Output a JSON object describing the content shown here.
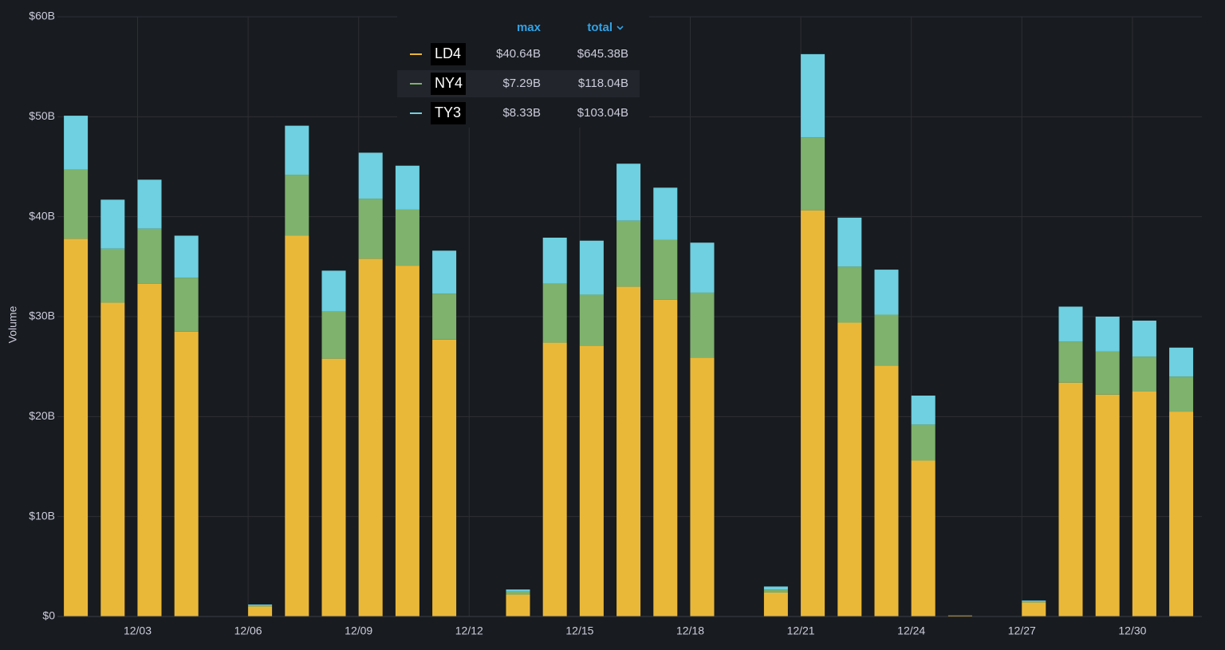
{
  "chart_data": {
    "type": "bar",
    "stacked": true,
    "y_label": "Volume",
    "categories": [
      null,
      null,
      "12/03",
      null,
      null,
      "12/06",
      null,
      null,
      "12/09",
      null,
      null,
      "12/12",
      null,
      null,
      "12/15",
      null,
      null,
      "12/18",
      null,
      null,
      "12/21",
      null,
      null,
      "12/24",
      null,
      null,
      "12/27",
      null,
      null,
      "12/30",
      null
    ],
    "series": [
      {
        "name": "LD4",
        "color": "#eab839",
        "legend_max": "$40.64B",
        "legend_total": "$645.38B",
        "values": [
          37.8,
          31.4,
          33.3,
          28.5,
          0,
          1.0,
          38.1,
          25.8,
          35.8,
          35.1,
          27.7,
          0,
          2.2,
          27.4,
          27.1,
          33.0,
          31.7,
          25.9,
          0,
          2.4,
          40.64,
          29.4,
          25.1,
          15.6,
          0.1,
          0,
          1.4,
          23.4,
          22.2,
          22.5,
          20.5
        ]
      },
      {
        "name": "NY4",
        "color": "#7eb26d",
        "legend_max": "$7.29B",
        "legend_total": "$118.04B",
        "values": [
          6.9,
          5.4,
          5.5,
          5.4,
          0,
          0.1,
          6.1,
          4.7,
          6.0,
          5.6,
          4.6,
          0,
          0.3,
          5.9,
          5.1,
          6.6,
          6.0,
          6.5,
          0,
          0.3,
          7.29,
          5.6,
          5.1,
          3.6,
          0,
          0,
          0.1,
          4.1,
          4.3,
          3.5,
          3.5
        ]
      },
      {
        "name": "TY3",
        "color": "#6ed0e0",
        "legend_max": "$8.33B",
        "legend_total": "$103.04B",
        "values": [
          5.4,
          4.9,
          4.9,
          4.2,
          0,
          0.1,
          4.9,
          4.1,
          4.6,
          4.4,
          4.3,
          0,
          0.2,
          4.6,
          5.4,
          5.7,
          5.2,
          5.0,
          0,
          0.3,
          8.33,
          4.9,
          4.5,
          2.9,
          0,
          0,
          0.1,
          3.5,
          3.5,
          3.6,
          2.9
        ]
      }
    ],
    "legend_columns": [
      "max",
      "total"
    ],
    "ylim": [
      0,
      60
    ],
    "yticks": [
      {
        "value": 0,
        "label": "$0"
      },
      {
        "value": 10,
        "label": "$10B"
      },
      {
        "value": 20,
        "label": "$20B"
      },
      {
        "value": 30,
        "label": "$30B"
      },
      {
        "value": 40,
        "label": "$40B"
      },
      {
        "value": 50,
        "label": "$50B"
      },
      {
        "value": 60,
        "label": "$60B"
      }
    ],
    "grid": true
  }
}
